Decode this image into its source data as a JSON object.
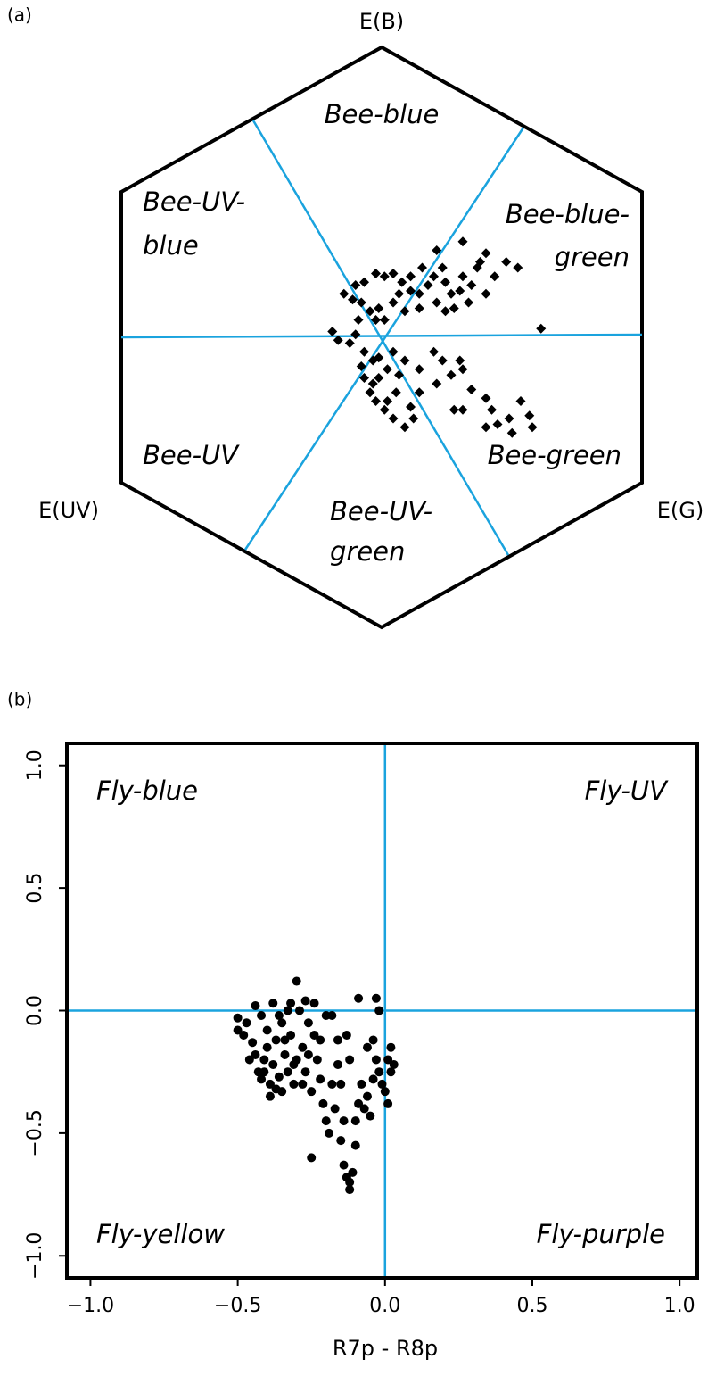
{
  "chart_data": [
    {
      "type": "hexagon",
      "panel": "(a)",
      "vertex_labels": [
        "E(B)",
        "E(UV)",
        "E(G)"
      ],
      "sector_labels": [
        [
          "Bee-blue"
        ],
        [
          "Bee-UV-",
          "blue"
        ],
        [
          "Bee-blue-",
          "green"
        ],
        [
          "Bee-UV"
        ],
        [
          "Bee-green"
        ],
        [
          "Bee-UV-",
          "green"
        ]
      ],
      "color": "#000000",
      "x": [
        0.19,
        0.28,
        0.36,
        0.43,
        0.47,
        0.33,
        0.28,
        0.22,
        0.16,
        0.13,
        0.1,
        0.07,
        0.04,
        0.01,
        -0.02,
        -0.06,
        -0.09,
        -0.1,
        -0.13,
        -0.07,
        -0.04,
        -0.01,
        0.04,
        0.08,
        0.13,
        0.19,
        0.24,
        0.27,
        0.31,
        0.36,
        0.39,
        0.34,
        0.21,
        0.14,
        0.18,
        0.1,
        0.06,
        0.01,
        -0.02,
        -0.08,
        -0.09,
        -0.17,
        -0.15,
        -0.11,
        0.55,
        0.3,
        0.25,
        0.22,
        -0.06,
        -0.03,
        -0.01,
        0.04,
        0.08,
        0.13,
        0.18,
        0.21,
        0.24,
        0.19,
        0.27,
        0.28,
        0.31,
        0.36,
        0.38,
        0.4,
        0.44,
        0.48,
        0.51,
        0.52,
        0.45,
        0.36,
        0.28,
        0.25,
        0.13,
        0.1,
        0.11,
        0.08,
        0.04,
        0.01,
        -0.02,
        -0.04,
        -0.06,
        -0.03,
        0.02,
        0.05,
        0.06,
        0.02,
        -0.01,
        -0.07
      ],
      "y": [
        0.3,
        0.33,
        0.29,
        0.26,
        0.24,
        0.24,
        0.21,
        0.19,
        0.18,
        0.15,
        0.16,
        0.19,
        0.22,
        0.21,
        0.22,
        0.19,
        0.18,
        0.13,
        0.15,
        0.12,
        0.09,
        0.1,
        0.12,
        0.09,
        0.1,
        0.12,
        0.15,
        0.16,
        0.18,
        0.15,
        0.21,
        0.26,
        0.24,
        0.24,
        0.21,
        0.21,
        0.15,
        0.06,
        0.06,
        0.06,
        0.01,
        0.02,
        -0.01,
        -0.02,
        0.03,
        0.12,
        0.1,
        0.09,
        -0.05,
        -0.08,
        -0.07,
        -0.05,
        -0.08,
        -0.11,
        -0.05,
        -0.08,
        -0.13,
        -0.16,
        -0.08,
        -0.11,
        -0.18,
        -0.21,
        -0.25,
        -0.3,
        -0.28,
        -0.22,
        -0.27,
        -0.31,
        -0.33,
        -0.31,
        -0.25,
        -0.25,
        -0.19,
        -0.24,
        -0.28,
        -0.31,
        -0.28,
        -0.25,
        -0.22,
        -0.19,
        -0.14,
        -0.16,
        -0.22,
        -0.19,
        -0.13,
        -0.11,
        -0.14,
        -0.1
      ]
    },
    {
      "type": "scatter",
      "panel": "(b)",
      "xlabel": "R7p - R8p",
      "quadrant_labels": [
        "Fly-blue",
        "Fly-UV",
        "Fly-yellow",
        "Fly-purple"
      ],
      "color": "#000000",
      "line_color": "#1aa3de",
      "hlines": [
        0
      ],
      "vlines": [
        0
      ],
      "xlim": [
        -1.08,
        1.06
      ],
      "ylim": [
        -1.09,
        1.09
      ],
      "xticks": [
        {
          "value": -1,
          "label": "−1.0"
        },
        {
          "value": -0.5,
          "label": "−0.5"
        },
        {
          "value": 0,
          "label": "0.0"
        },
        {
          "value": 0.5,
          "label": "0.5"
        },
        {
          "value": 1,
          "label": "1.0"
        }
      ],
      "yticks": [
        {
          "value": -1,
          "label": "−1.0"
        },
        {
          "value": -0.5,
          "label": "−0.5"
        },
        {
          "value": 0,
          "label": "0.0"
        },
        {
          "value": 0.5,
          "label": "0.5"
        },
        {
          "value": 1,
          "label": "1.0"
        }
      ],
      "x": [
        -0.5,
        -0.5,
        -0.48,
        -0.47,
        -0.45,
        -0.44,
        -0.43,
        -0.42,
        -0.41,
        -0.4,
        -0.4,
        -0.39,
        -0.38,
        -0.37,
        -0.36,
        -0.35,
        -0.35,
        -0.34,
        -0.33,
        -0.32,
        -0.31,
        -0.3,
        -0.3,
        -0.29,
        -0.28,
        -0.27,
        -0.26,
        -0.25,
        -0.25,
        -0.24,
        -0.23,
        -0.22,
        -0.21,
        -0.2,
        -0.2,
        -0.19,
        -0.18,
        -0.17,
        -0.16,
        -0.15,
        -0.14,
        -0.13,
        -0.12,
        -0.12,
        -0.11,
        -0.1,
        -0.1,
        -0.09,
        -0.09,
        -0.08,
        -0.07,
        -0.06,
        -0.05,
        -0.04,
        -0.03,
        -0.03,
        -0.02,
        -0.01,
        0.0,
        0.01,
        0.02,
        0.02,
        0.03,
        0.01,
        -0.44,
        -0.42,
        -0.38,
        -0.36,
        -0.33,
        -0.32,
        -0.27,
        -0.24,
        -0.18,
        -0.13,
        -0.12,
        -0.46,
        -0.41,
        -0.39,
        -0.37,
        -0.34,
        -0.31,
        -0.28,
        -0.26,
        -0.22,
        -0.16,
        -0.15,
        -0.14,
        -0.06,
        -0.04,
        -0.02
      ],
      "y": [
        -0.03,
        -0.08,
        -0.1,
        -0.05,
        -0.13,
        -0.18,
        -0.25,
        -0.28,
        -0.2,
        -0.15,
        -0.08,
        -0.3,
        -0.22,
        -0.12,
        -0.27,
        -0.33,
        -0.05,
        -0.18,
        -0.25,
        -0.1,
        -0.3,
        -0.2,
        0.12,
        0.0,
        -0.15,
        -0.25,
        -0.05,
        -0.33,
        -0.6,
        -0.1,
        -0.2,
        -0.28,
        -0.38,
        -0.45,
        -0.02,
        -0.5,
        -0.3,
        -0.4,
        -0.12,
        -0.53,
        -0.63,
        -0.68,
        -0.73,
        -0.7,
        -0.66,
        -0.55,
        -0.45,
        -0.38,
        0.05,
        -0.3,
        -0.4,
        -0.35,
        -0.43,
        -0.28,
        0.05,
        -0.2,
        -0.25,
        -0.3,
        -0.33,
        -0.2,
        -0.25,
        -0.15,
        -0.22,
        -0.38,
        0.02,
        -0.02,
        0.03,
        -0.02,
        0.0,
        0.03,
        0.04,
        0.03,
        -0.02,
        -0.1,
        -0.2,
        -0.2,
        -0.25,
        -0.35,
        -0.32,
        -0.12,
        -0.22,
        -0.3,
        -0.18,
        -0.12,
        -0.22,
        -0.3,
        -0.45,
        -0.15,
        -0.12,
        0.0
      ]
    }
  ]
}
